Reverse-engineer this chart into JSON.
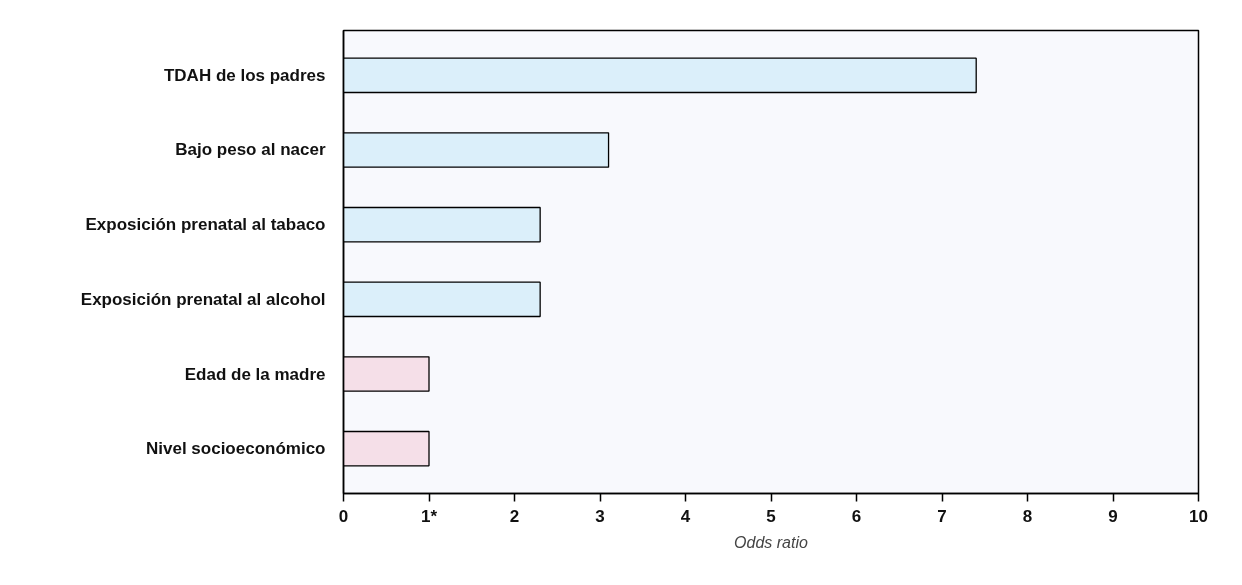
{
  "chart_data": {
    "type": "bar",
    "orientation": "horizontal",
    "xlabel": "Odds ratio",
    "categories": [
      "TDAH de los padres",
      "Bajo peso al nacer",
      "Exposición prenatal al tabaco",
      "Exposición prenatal al alcohol",
      "Edad de la madre",
      "Nivel socioeconómico"
    ],
    "values": [
      7.4,
      3.1,
      2.3,
      2.3,
      1.0,
      1.0
    ],
    "colors": [
      "#dbeffa",
      "#dbeffa",
      "#dbeffa",
      "#dbeffa",
      "#f5dfe8",
      "#f5dfe8"
    ],
    "xlim": [
      0,
      10
    ],
    "xticks": [
      0,
      {
        "value": 1,
        "label": "1*"
      },
      2,
      3,
      4,
      5,
      6,
      7,
      8,
      9,
      10
    ],
    "grid": false
  }
}
